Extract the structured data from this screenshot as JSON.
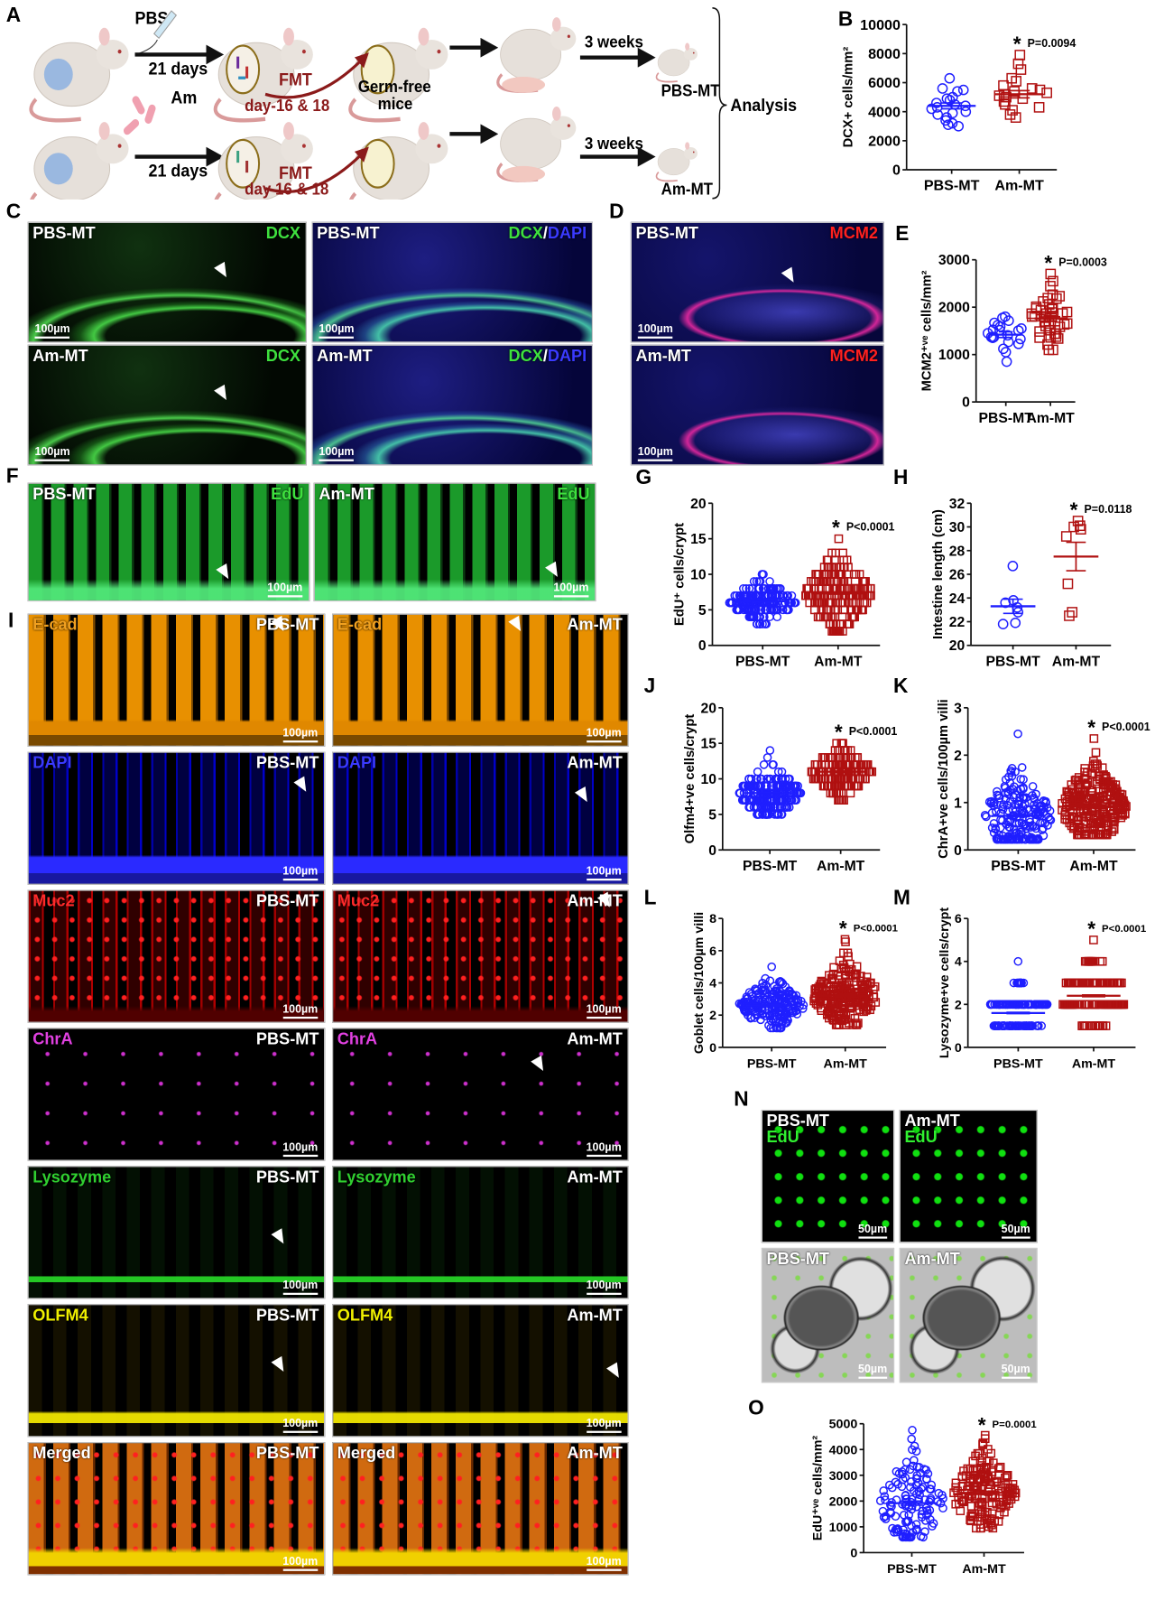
{
  "panel_letters": [
    "A",
    "B",
    "C",
    "D",
    "E",
    "F",
    "G",
    "H",
    "I",
    "J",
    "K",
    "L",
    "M",
    "N",
    "O"
  ],
  "scheme": {
    "pbs": "PBS",
    "am": "Am",
    "days_top": "21 days",
    "days_bottom": "21 days",
    "fmt_top": "FMT",
    "fmt_top_days": "day-16 & 18",
    "fmt_bottom": "FMT",
    "fmt_bottom_days": "day 16 & 18",
    "germ_free_1": "Germ-free",
    "germ_free_2": "mice",
    "weeks_top": "3 weeks",
    "weeks_bottom": "3 weeks",
    "out_top": "PBS-MT",
    "out_bottom": "Am-MT",
    "analysis": "Analysis"
  },
  "images": [
    {
      "id": "C1",
      "stain": "dcx",
      "sample": "PBS-MT",
      "channel": "DCX",
      "scale": "100µm"
    },
    {
      "id": "C2",
      "stain": "dcxdapi",
      "sample": "PBS-MT",
      "channel": "DCX",
      "sep": "/",
      "channel2": "DAPI",
      "scale": "100µm"
    },
    {
      "id": "C3",
      "stain": "dcx",
      "sample": "Am-MT",
      "channel": "DCX",
      "scale": "100µm"
    },
    {
      "id": "C4",
      "stain": "dcxdapi",
      "sample": "Am-MT",
      "channel": "DCX",
      "sep": "/",
      "channel2": "DAPI",
      "scale": "100µm"
    },
    {
      "id": "D1",
      "stain": "mcm2",
      "sample": "PBS-MT",
      "channel": "MCM2",
      "scale": "100µm"
    },
    {
      "id": "D2",
      "stain": "mcm2",
      "sample": "Am-MT",
      "channel": "MCM2",
      "scale": "100µm"
    },
    {
      "id": "F1",
      "stain": "edu",
      "sample": "PBS-MT",
      "channel": "EdU",
      "scale": "100µm"
    },
    {
      "id": "F2",
      "stain": "edu",
      "sample": "Am-MT",
      "channel": "EdU",
      "scale": "100µm"
    },
    {
      "id": "I1",
      "stain": "ecad",
      "sample": "PBS-MT",
      "channel": "E-cad",
      "scale": "100µm"
    },
    {
      "id": "I2",
      "stain": "ecad",
      "sample": "Am-MT",
      "channel": "E-cad",
      "scale": "100µm"
    },
    {
      "id": "I3",
      "stain": "dapi",
      "sample": "PBS-MT",
      "channel": "DAPI",
      "scale": "100µm"
    },
    {
      "id": "I4",
      "stain": "dapi",
      "sample": "Am-MT",
      "channel": "DAPI",
      "scale": "100µm"
    },
    {
      "id": "I5",
      "stain": "muc2",
      "sample": "PBS-MT",
      "channel": "Muc2",
      "scale": "100µm"
    },
    {
      "id": "I6",
      "stain": "muc2",
      "sample": "Am-MT",
      "channel": "Muc2",
      "scale": "100µm"
    },
    {
      "id": "I7",
      "stain": "chra",
      "sample": "PBS-MT",
      "channel": "ChrA",
      "scale": "100µm"
    },
    {
      "id": "I8",
      "stain": "chra",
      "sample": "Am-MT",
      "channel": "ChrA",
      "scale": "100µm"
    },
    {
      "id": "I9",
      "stain": "lyso",
      "sample": "PBS-MT",
      "channel": "Lysozyme",
      "scale": "100µm"
    },
    {
      "id": "I10",
      "stain": "lyso",
      "sample": "Am-MT",
      "channel": "Lysozyme",
      "scale": "100µm"
    },
    {
      "id": "I11",
      "stain": "olfm4",
      "sample": "PBS-MT",
      "channel": "OLFM4",
      "scale": "100µm"
    },
    {
      "id": "I12",
      "stain": "olfm4",
      "sample": "Am-MT",
      "channel": "OLFM4",
      "scale": "100µm"
    },
    {
      "id": "I13",
      "stain": "merged",
      "sample": "PBS-MT",
      "channel": "Merged",
      "scale": "100µm"
    },
    {
      "id": "I14",
      "stain": "merged",
      "sample": "Am-MT",
      "channel": "Merged",
      "scale": "100µm"
    },
    {
      "id": "N1",
      "stain": "nedu",
      "sample": "PBS-MT",
      "channel": "EdU",
      "scale": "50µm"
    },
    {
      "id": "N2",
      "stain": "nedu",
      "sample": "Am-MT",
      "channel": "EdU",
      "scale": "50µm"
    },
    {
      "id": "N3",
      "stain": "bf",
      "sample": "PBS-MT",
      "scale": "50µm"
    },
    {
      "id": "N4",
      "stain": "bf",
      "sample": "Am-MT",
      "scale": "50µm"
    }
  ],
  "chart_data": [
    {
      "panel": "B",
      "type": "scatter",
      "ylabel": "DCX+ cells/mm²",
      "ylim": [
        0,
        10000
      ],
      "yticks": [
        0,
        2000,
        4000,
        6000,
        8000,
        10000
      ],
      "categories": [
        "PBS-MT",
        "Am-MT"
      ],
      "series": [
        {
          "name": "PBS-MT",
          "color": "#1f1fff",
          "marker": "circle",
          "mean": 4400,
          "sem": 200,
          "values": [
            6300,
            5600,
            5500,
            5400,
            5000,
            4900,
            4800,
            4600,
            4500,
            4400,
            4300,
            4200,
            4000,
            3900,
            3800,
            3600,
            3400,
            3200,
            3100,
            3000
          ]
        },
        {
          "name": "Am-MT",
          "color": "#b01010",
          "marker": "square",
          "mean": 5200,
          "sem": 250,
          "values": [
            7900,
            7300,
            6900,
            6300,
            6100,
            5800,
            5600,
            5500,
            5400,
            5300,
            5200,
            5100,
            5000,
            4900,
            4700,
            4500,
            4300,
            4100,
            3800,
            3600
          ]
        }
      ],
      "annotation": {
        "star": "*",
        "p": "P=0.0094"
      }
    },
    {
      "panel": "E",
      "type": "scatter",
      "ylabel": "MCM2⁺ᵛᵉ cells/mm²",
      "ylim": [
        0,
        3000
      ],
      "yticks": [
        0,
        1000,
        2000,
        3000
      ],
      "categories": [
        "PBS-MT",
        "Am-MT"
      ],
      "series": [
        {
          "name": "PBS-MT",
          "color": "#1f1fff",
          "marker": "circle",
          "mean": 1420,
          "sem": 60,
          "summary": {
            "n": 22,
            "min": 850,
            "max": 1800
          }
        },
        {
          "name": "Am-MT",
          "color": "#b01010",
          "marker": "square",
          "mean": 1760,
          "sem": 60,
          "summary": {
            "n": 42,
            "min": 1100,
            "max": 2700
          }
        }
      ],
      "annotation": {
        "star": "*",
        "p": "P=0.0003"
      }
    },
    {
      "panel": "G",
      "type": "scatter",
      "ylabel": "EdU⁺ cells/crypt",
      "ylim": [
        0,
        20
      ],
      "yticks": [
        0,
        5,
        10,
        15,
        20
      ],
      "categories": [
        "PBS-MT",
        "Am-MT"
      ],
      "series": [
        {
          "name": "PBS-MT",
          "color": "#1f1fff",
          "marker": "circle",
          "mean": 6.2,
          "sem": 0.1,
          "summary": {
            "n": 220,
            "min": 3,
            "max": 10,
            "integer": true
          }
        },
        {
          "name": "Am-MT",
          "color": "#b01010",
          "marker": "square",
          "mean": 7.3,
          "sem": 0.1,
          "summary": {
            "n": 220,
            "min": 2,
            "max": 15,
            "integer": true
          }
        }
      ],
      "annotation": {
        "star": "*",
        "p": "P<0.0001"
      }
    },
    {
      "panel": "H",
      "type": "scatter",
      "ylabel": "Intestine length (cm)",
      "ylim": [
        20,
        32
      ],
      "yticks": [
        20,
        22,
        24,
        26,
        28,
        30,
        32
      ],
      "categories": [
        "PBS-MT",
        "Am-MT"
      ],
      "series": [
        {
          "name": "PBS-MT",
          "color": "#1f1fff",
          "marker": "circle",
          "mean": 23.3,
          "sem": 0.6,
          "values": [
            26.7,
            23.8,
            23.6,
            23.2,
            22.8,
            21.8,
            21.9
          ]
        },
        {
          "name": "Am-MT",
          "color": "#b01010",
          "marker": "square",
          "mean": 27.5,
          "sem": 1.2,
          "values": [
            30.5,
            30.1,
            30.0,
            29.8,
            29.2,
            25.2,
            22.5,
            22.8
          ]
        }
      ],
      "annotation": {
        "star": "*",
        "p": "P=0.0118"
      }
    },
    {
      "panel": "J",
      "type": "scatter",
      "ylabel": "Olfm4+ve cells/crypt",
      "ylim": [
        0,
        20
      ],
      "yticks": [
        0,
        5,
        10,
        15,
        20
      ],
      "categories": [
        "PBS-MT",
        "Am-MT"
      ],
      "series": [
        {
          "name": "PBS-MT",
          "color": "#1f1fff",
          "marker": "circle",
          "mean": 8.0,
          "sem": 0.1,
          "summary": {
            "n": 240,
            "min": 5,
            "max": 14,
            "integer": true
          }
        },
        {
          "name": "Am-MT",
          "color": "#b01010",
          "marker": "square",
          "mean": 11.0,
          "sem": 0.1,
          "summary": {
            "n": 200,
            "min": 7,
            "max": 15,
            "integer": true
          }
        }
      ],
      "annotation": {
        "star": "*",
        "p": "P<0.0001"
      }
    },
    {
      "panel": "K",
      "type": "scatter",
      "ylabel": "ChrA+ve cells/100µm villi",
      "ylim": [
        0,
        3
      ],
      "yticks": [
        0,
        1,
        2,
        3
      ],
      "categories": [
        "PBS-MT",
        "Am-MT"
      ],
      "series": [
        {
          "name": "PBS-MT",
          "color": "#1f1fff",
          "marker": "circle",
          "mean": 0.72,
          "sem": 0.02,
          "summary": {
            "n": 200,
            "min": 0.22,
            "max": 2.45
          }
        },
        {
          "name": "Am-MT",
          "color": "#b01010",
          "marker": "square",
          "mean": 0.92,
          "sem": 0.02,
          "summary": {
            "n": 260,
            "min": 0.32,
            "max": 2.35
          }
        }
      ],
      "annotation": {
        "star": "*",
        "p": "P<0.0001"
      }
    },
    {
      "panel": "L",
      "type": "scatter",
      "ylabel": "Goblet cells/100µm villi",
      "ylim": [
        0,
        8
      ],
      "yticks": [
        0,
        2,
        4,
        6,
        8
      ],
      "categories": [
        "PBS-MT",
        "Am-MT"
      ],
      "series": [
        {
          "name": "PBS-MT",
          "color": "#1f1fff",
          "marker": "circle",
          "mean": 2.6,
          "sem": 0.05,
          "summary": {
            "n": 200,
            "min": 1.2,
            "max": 5.0
          }
        },
        {
          "name": "Am-MT",
          "color": "#b01010",
          "marker": "square",
          "mean": 3.2,
          "sem": 0.05,
          "summary": {
            "n": 240,
            "min": 1.4,
            "max": 6.7
          }
        }
      ],
      "annotation": {
        "star": "*",
        "p": "P<0.0001"
      }
    },
    {
      "panel": "M",
      "type": "scatter",
      "ylabel": "Lysozyme+ve cells/crypt",
      "ylim": [
        0,
        6
      ],
      "yticks": [
        0,
        2,
        4,
        6
      ],
      "categories": [
        "PBS-MT",
        "Am-MT"
      ],
      "series": [
        {
          "name": "PBS-MT",
          "color": "#1f1fff",
          "marker": "circle",
          "mean": 1.6,
          "sem": 0.03,
          "summary": {
            "n": 180,
            "min": 1,
            "max": 4,
            "integer": true
          }
        },
        {
          "name": "Am-MT",
          "color": "#b01010",
          "marker": "square",
          "mean": 2.4,
          "sem": 0.04,
          "summary": {
            "n": 180,
            "min": 1,
            "max": 5,
            "integer": true
          }
        }
      ],
      "annotation": {
        "star": "*",
        "p": "P<0.0001"
      }
    },
    {
      "panel": "O",
      "type": "scatter",
      "ylabel": "EdU⁺ᵛᵉ cells/mm²",
      "ylim": [
        0,
        5000
      ],
      "yticks": [
        0,
        1000,
        2000,
        3000,
        4000,
        5000
      ],
      "categories": [
        "PBS-MT",
        "Am-MT"
      ],
      "series": [
        {
          "name": "PBS-MT",
          "color": "#1f1fff",
          "marker": "circle",
          "mean": 1920,
          "sem": 80,
          "summary": {
            "n": 130,
            "min": 600,
            "max": 4750
          }
        },
        {
          "name": "Am-MT",
          "color": "#b01010",
          "marker": "square",
          "mean": 2320,
          "sem": 60,
          "summary": {
            "n": 160,
            "min": 950,
            "max": 4550
          }
        }
      ],
      "annotation": {
        "star": "*",
        "p": "P=0.0001"
      }
    }
  ]
}
